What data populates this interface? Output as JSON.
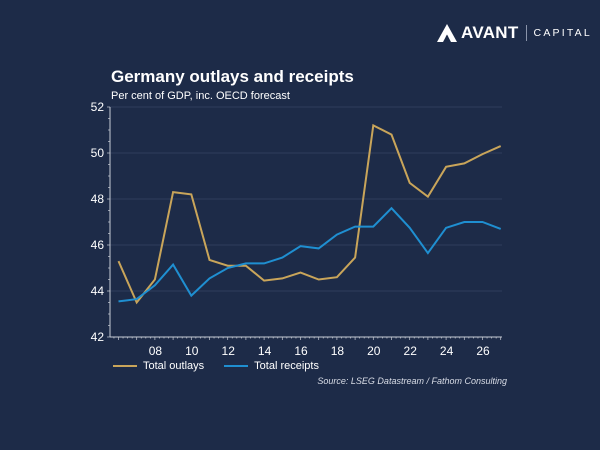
{
  "brand": {
    "name": "AVANT",
    "sub": "CAPITAL",
    "logo_icon": "avant-mountain-logo-icon"
  },
  "colors": {
    "background": "#1d2b48",
    "outlays": "#c9a55a",
    "receipts": "#1f8fd1",
    "gridline": "#2e3d5c",
    "axis": "#c8ccd6"
  },
  "chart_data": {
    "type": "line",
    "title": "Germany outlays and receipts",
    "subtitle": "Per cent of GDP, inc. OECD forecast",
    "xlabel": "",
    "ylabel": "",
    "x": [
      2006,
      2007,
      2008,
      2009,
      2010,
      2011,
      2012,
      2013,
      2014,
      2015,
      2016,
      2017,
      2018,
      2019,
      2020,
      2021,
      2022,
      2023,
      2024,
      2025,
      2026,
      2027
    ],
    "xlim": [
      2006,
      2027.5
    ],
    "ylim": [
      42,
      52
    ],
    "x_ticks": [
      2008,
      2010,
      2012,
      2014,
      2016,
      2018,
      2020,
      2022,
      2024,
      2026
    ],
    "x_tick_labels": [
      "08",
      "10",
      "12",
      "14",
      "16",
      "18",
      "20",
      "22",
      "24",
      "26"
    ],
    "y_ticks": [
      42,
      44,
      46,
      48,
      50,
      52
    ],
    "y_tick_labels": [
      "42",
      "44",
      "46",
      "48",
      "50",
      "52"
    ],
    "grid": true,
    "legend_position": "bottom-left",
    "series": [
      {
        "name": "Total outlays",
        "color": "#c9a55a",
        "values": [
          45.3,
          43.5,
          44.5,
          48.3,
          48.2,
          45.35,
          45.1,
          45.1,
          44.45,
          44.55,
          44.8,
          44.5,
          44.6,
          45.45,
          51.2,
          50.8,
          48.7,
          48.1,
          49.4,
          49.55,
          49.95,
          50.3
        ]
      },
      {
        "name": "Total receipts",
        "color": "#1f8fd1",
        "values": [
          43.55,
          43.65,
          44.25,
          45.15,
          43.8,
          44.55,
          45.0,
          45.2,
          45.2,
          45.45,
          45.95,
          45.85,
          46.45,
          46.8,
          46.8,
          47.6,
          46.75,
          45.65,
          46.75,
          47.0,
          47.0,
          46.7
        ]
      }
    ],
    "source": "Source: LSEG Datastream / Fathom Consulting"
  }
}
